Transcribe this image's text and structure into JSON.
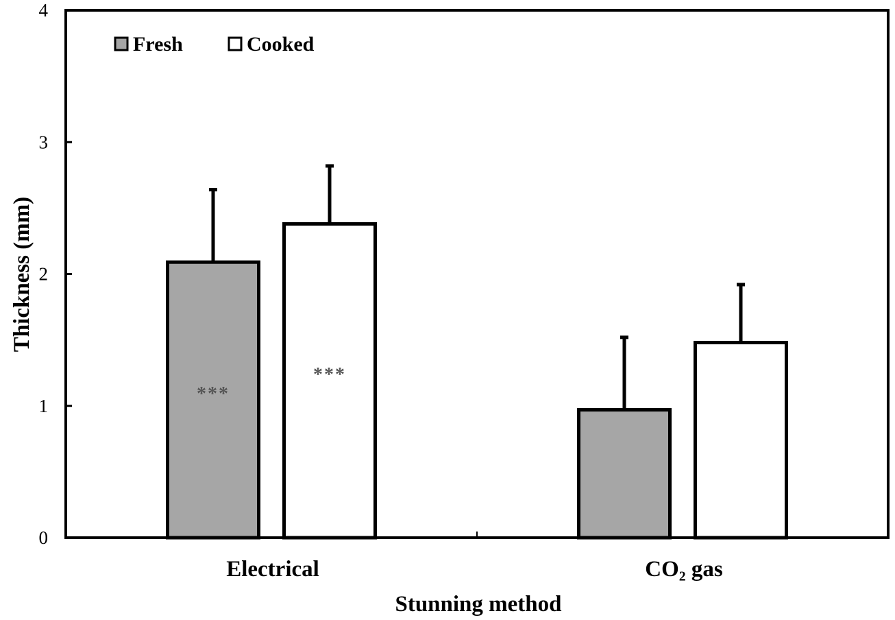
{
  "chart_data": {
    "type": "bar",
    "xlabel": "Stunning method",
    "ylabel": "Thickness (mm)",
    "ylim": [
      0,
      4
    ],
    "yticks": [
      "0",
      "1",
      "2",
      "3",
      "4"
    ],
    "grid": false,
    "legend_position": "top-left",
    "categories": [
      "Electrical",
      "CO₂ gas"
    ],
    "series": [
      {
        "name": "Fresh",
        "color": "#a6a6a6",
        "values": [
          2.09,
          0.97
        ],
        "error": [
          0.56,
          0.56
        ],
        "annotations": [
          "***",
          ""
        ]
      },
      {
        "name": "Cooked",
        "color": "#ffffff",
        "values": [
          2.38,
          1.48
        ],
        "error": [
          0.45,
          0.45
        ],
        "annotations": [
          "***",
          ""
        ]
      }
    ]
  }
}
